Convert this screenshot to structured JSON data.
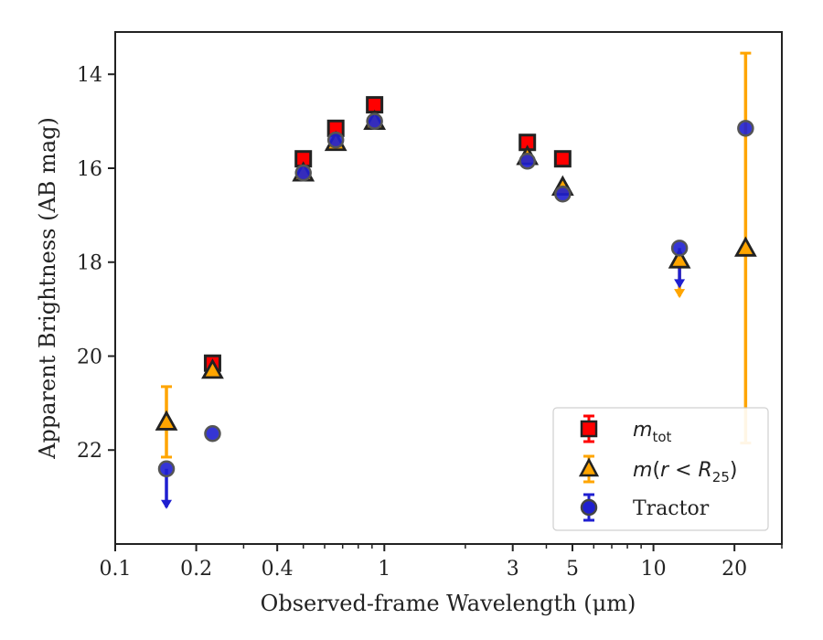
{
  "chart_data": {
    "type": "scatter",
    "xlabel": "Observed-frame Wavelength (μm)",
    "ylabel": "Apparent Brightness (AB mag)",
    "xscale": "log",
    "xlim": [
      0.1,
      30
    ],
    "ylim": [
      24.0,
      13.1
    ],
    "y_inverted": true,
    "x_ticks": [
      0.1,
      0.2,
      0.4,
      1,
      3,
      5,
      10,
      20
    ],
    "x_tick_labels": [
      "0.1",
      "0.2",
      "0.4",
      "1",
      "3",
      "5",
      "10",
      "20"
    ],
    "y_ticks": [
      14,
      16,
      18,
      20,
      22
    ],
    "y_tick_labels": [
      "14",
      "16",
      "18",
      "20",
      "22"
    ],
    "legend_position": "lower-right",
    "legend_entries": [
      "m_tot",
      "m(r < R25)",
      "Tractor"
    ],
    "series": [
      {
        "name": "m_tot",
        "marker": "square",
        "color": "#ff0000",
        "points": [
          {
            "x": 0.23,
            "y": 20.15
          },
          {
            "x": 0.5,
            "y": 15.8
          },
          {
            "x": 0.66,
            "y": 15.15
          },
          {
            "x": 0.92,
            "y": 14.65
          },
          {
            "x": 3.4,
            "y": 15.45
          },
          {
            "x": 4.6,
            "y": 15.8
          }
        ]
      },
      {
        "name": "m(r < R25)",
        "marker": "triangle",
        "color": "#ffa500",
        "points": [
          {
            "x": 0.155,
            "y": 21.4,
            "err_low": 0.75,
            "err_high": 0.75
          },
          {
            "x": 0.23,
            "y": 20.3
          },
          {
            "x": 0.5,
            "y": 16.1
          },
          {
            "x": 0.66,
            "y": 15.45
          },
          {
            "x": 0.92,
            "y": 15.0
          },
          {
            "x": 3.4,
            "y": 15.75
          },
          {
            "x": 4.6,
            "y": 16.4
          },
          {
            "x": 12.5,
            "y": 17.95,
            "upper_limit": true
          },
          {
            "x": 22.0,
            "y": 17.7,
            "err_low": 4.15,
            "err_high": 4.15
          }
        ]
      },
      {
        "name": "Tractor",
        "marker": "circle",
        "color": "#1f1fd0",
        "points": [
          {
            "x": 0.155,
            "y": 22.4,
            "upper_limit": true
          },
          {
            "x": 0.23,
            "y": 21.65
          },
          {
            "x": 0.5,
            "y": 16.1
          },
          {
            "x": 0.66,
            "y": 15.4
          },
          {
            "x": 0.92,
            "y": 15.0
          },
          {
            "x": 3.4,
            "y": 15.85
          },
          {
            "x": 4.6,
            "y": 16.55
          },
          {
            "x": 12.5,
            "y": 17.7,
            "upper_limit": true
          },
          {
            "x": 22.0,
            "y": 15.15
          }
        ]
      }
    ]
  }
}
